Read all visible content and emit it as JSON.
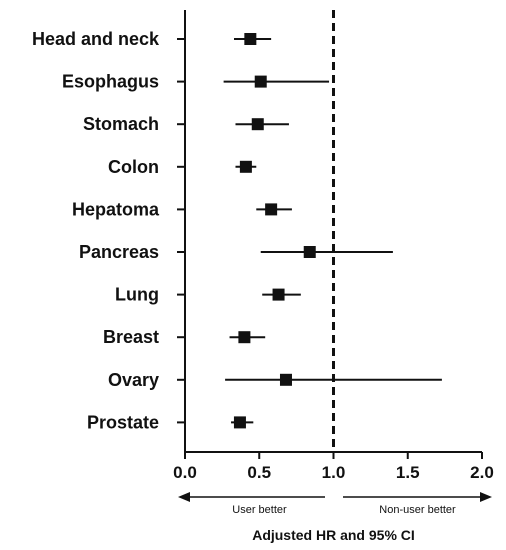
{
  "chart_data": {
    "type": "forest",
    "categories": [
      "Head and neck",
      "Esophagus",
      "Stomach",
      "Colon",
      "Hepatoma",
      "Pancreas",
      "Lung",
      "Breast",
      "Ovary",
      "Prostate"
    ],
    "series": [
      {
        "hr": [
          0.44,
          0.51,
          0.49,
          0.41,
          0.58,
          0.84,
          0.63,
          0.4,
          0.68,
          0.37
        ],
        "lower": [
          0.33,
          0.26,
          0.34,
          0.34,
          0.48,
          0.51,
          0.52,
          0.3,
          0.27,
          0.31
        ],
        "upper": [
          0.58,
          0.97,
          0.7,
          0.48,
          0.72,
          1.4,
          0.78,
          0.54,
          1.73,
          0.46
        ]
      }
    ],
    "xlim": [
      0.0,
      2.0
    ],
    "xticks": [
      "0.0",
      "0.5",
      "1.0",
      "1.5",
      "2.0"
    ],
    "xtick_values": [
      0.0,
      0.5,
      1.0,
      1.5,
      2.0
    ],
    "reference_line": 1.0,
    "xlabel": "Adjusted HR and 95% CI",
    "arrow_left_label": "User better",
    "arrow_right_label": "Non-user better",
    "grid": false,
    "legend": "none"
  }
}
